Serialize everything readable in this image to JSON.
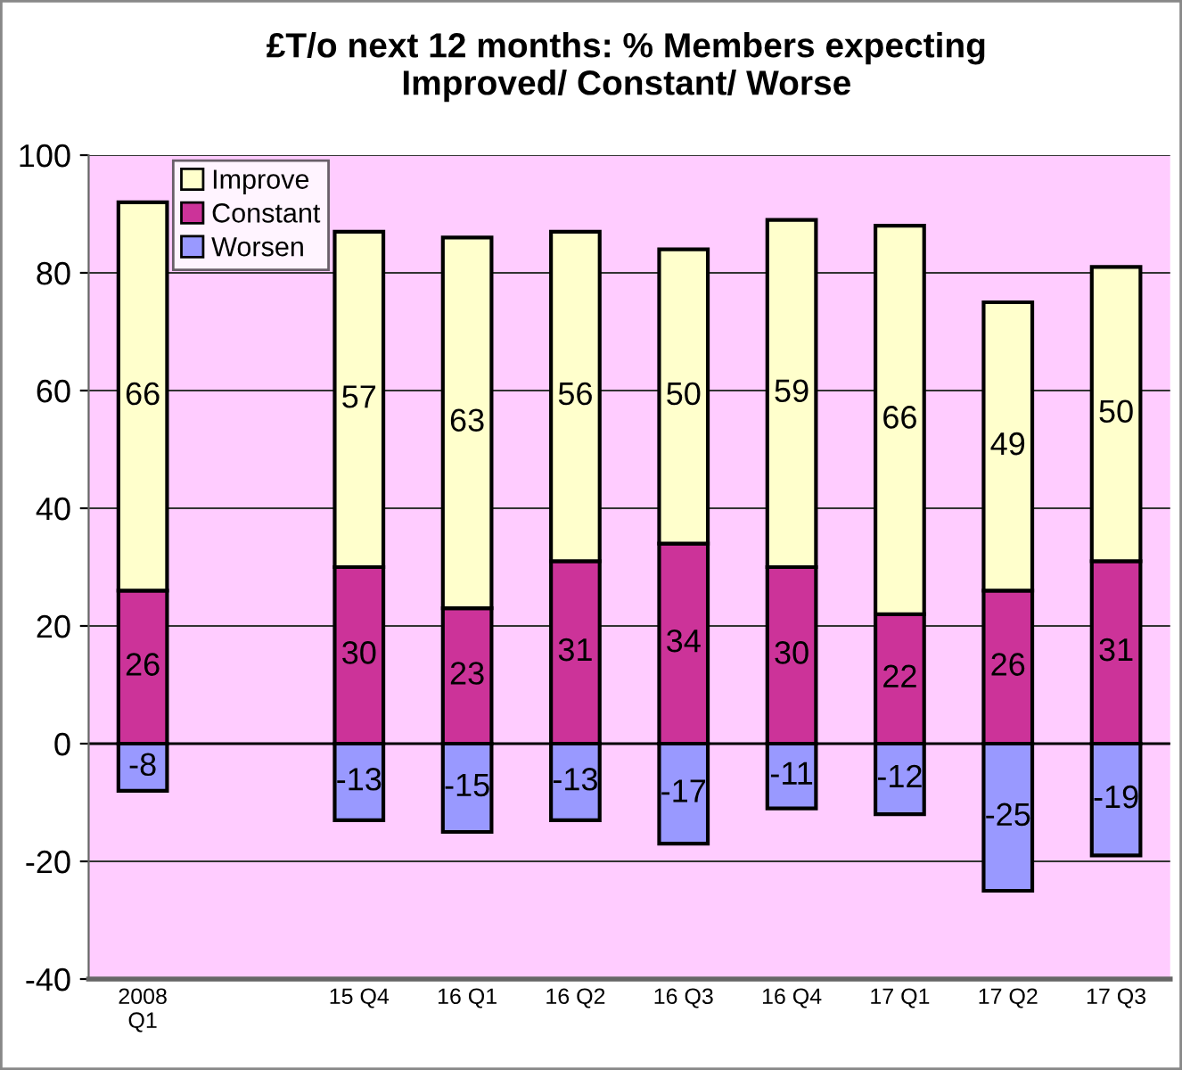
{
  "chart_data": {
    "type": "bar",
    "title": "£T/o next 12 months: % Members expecting\nImproved/ Constant/ Worse",
    "categories": [
      "2008\nQ1",
      null,
      "15 Q4",
      "16 Q1",
      "16 Q2",
      "16 Q3",
      "16 Q4",
      "17 Q1",
      "17 Q2",
      "17 Q3"
    ],
    "stacked": true,
    "series": [
      {
        "name": "Improve",
        "color": "#ffffcc",
        "values": [
          66,
          null,
          57,
          63,
          56,
          50,
          59,
          66,
          49,
          50
        ]
      },
      {
        "name": "Constant",
        "color": "#cc3399",
        "values": [
          26,
          null,
          30,
          23,
          31,
          34,
          30,
          22,
          26,
          31
        ]
      },
      {
        "name": "Worsen",
        "color": "#9999ff",
        "values": [
          -8,
          null,
          -13,
          -15,
          -13,
          -17,
          -11,
          -12,
          -25,
          -19
        ]
      }
    ],
    "ylim": [
      -40,
      100
    ],
    "yticks": [
      -40,
      -20,
      0,
      20,
      40,
      60,
      80,
      100
    ],
    "grid": "y",
    "legend": "top left",
    "data_labels": true
  }
}
